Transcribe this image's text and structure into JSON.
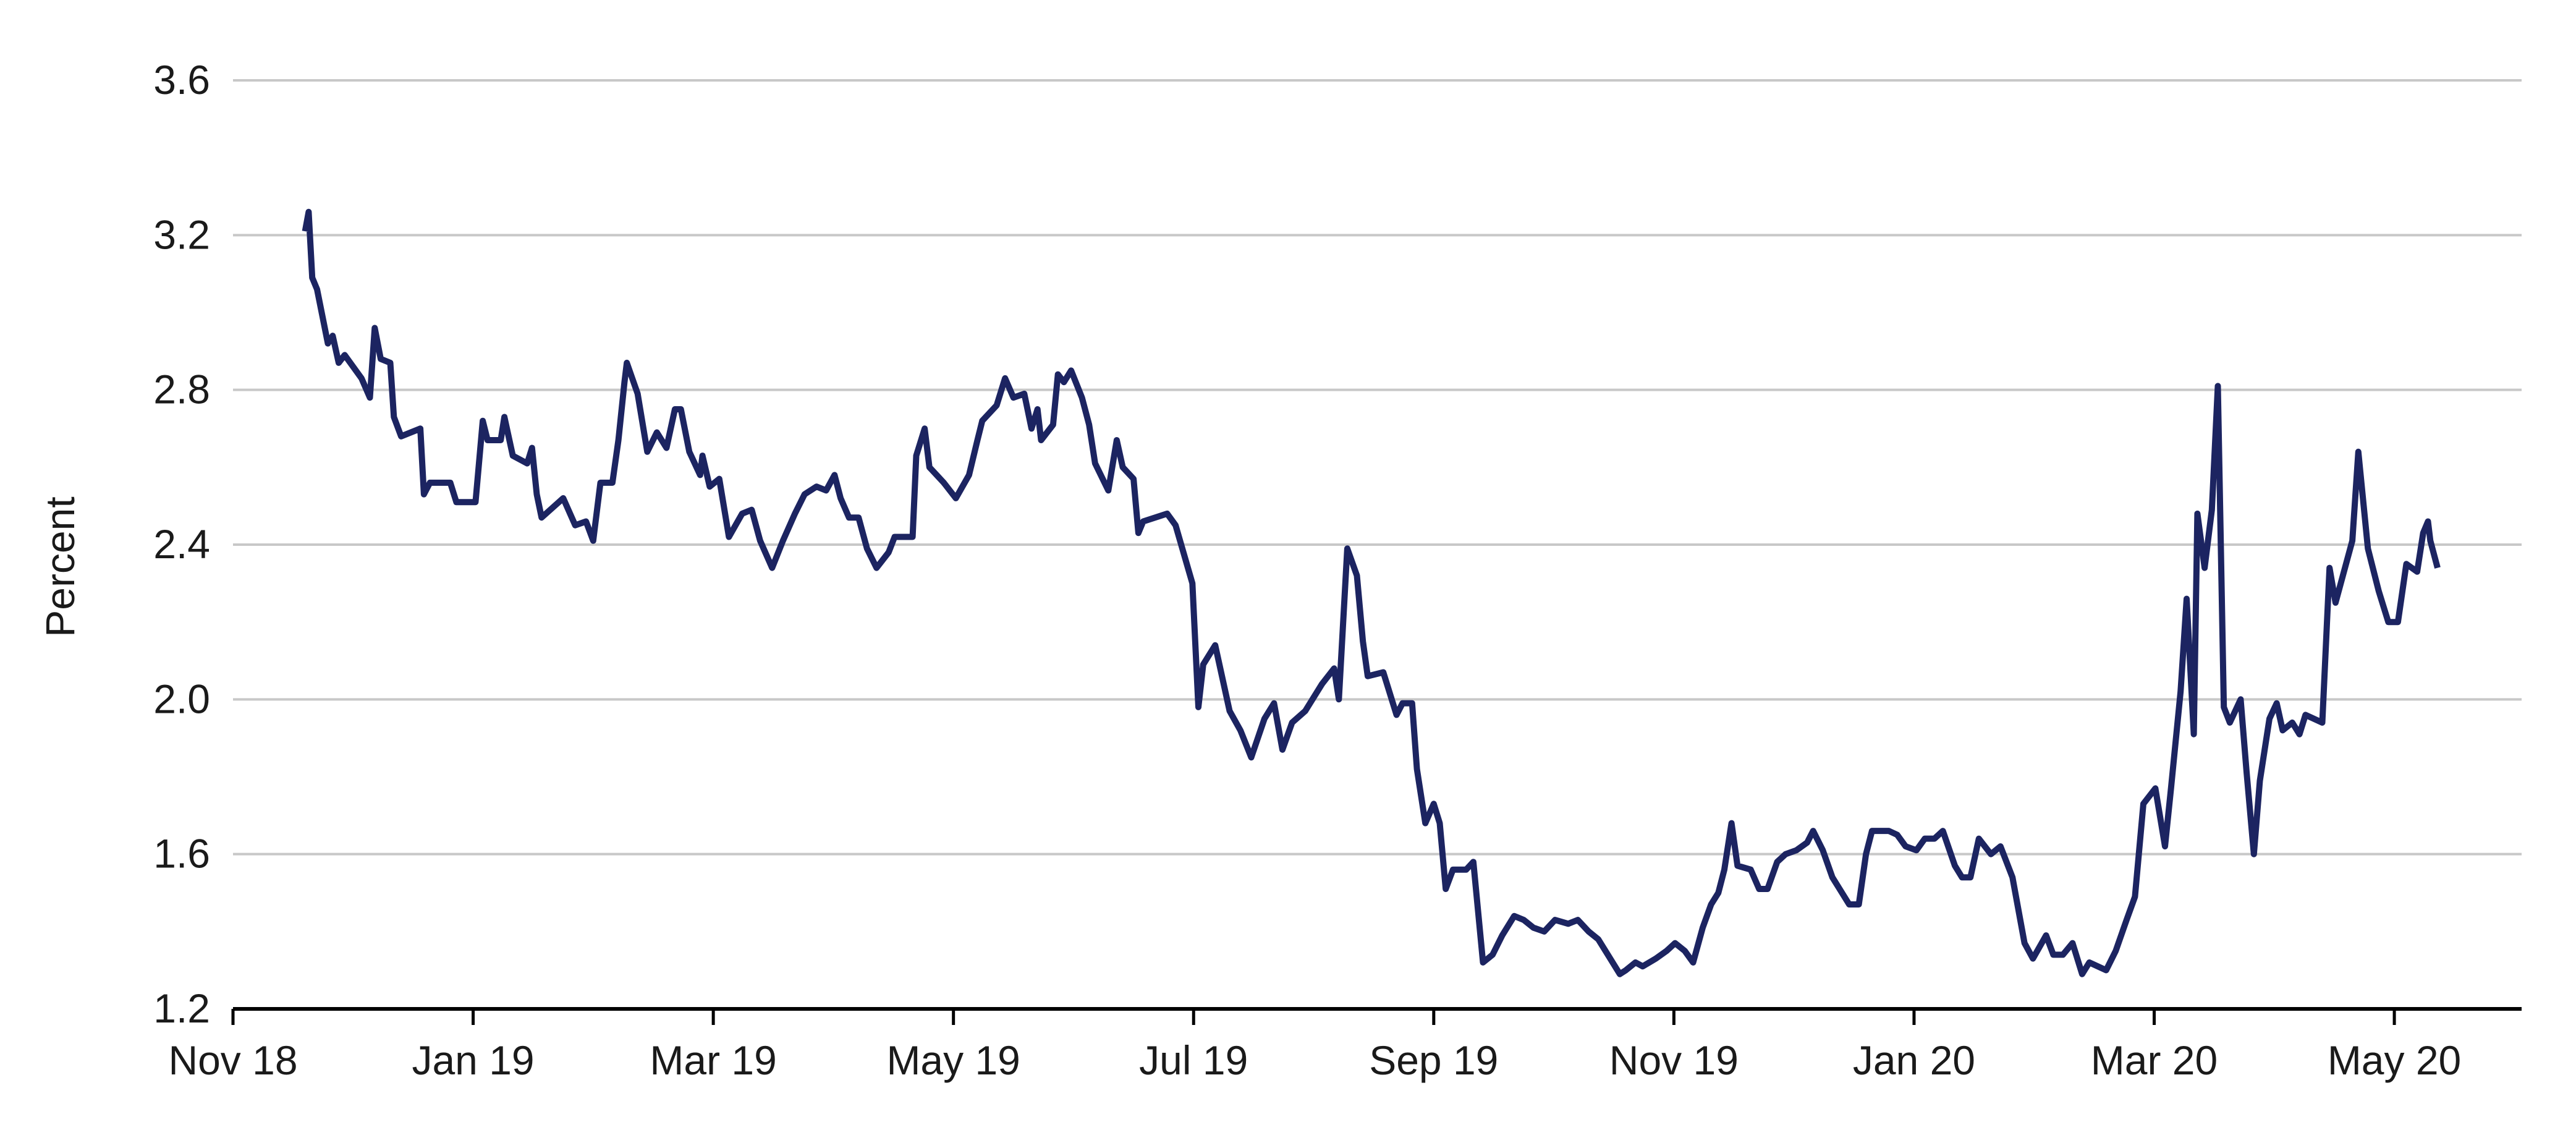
{
  "chart_data": {
    "type": "line",
    "y_label": "Percent",
    "grid": true,
    "xlim": [
      0,
      19.06
    ],
    "xticks": [
      {
        "value": 0,
        "label": "Nov 18"
      },
      {
        "value": 2,
        "label": "Jan 19"
      },
      {
        "value": 4,
        "label": "Mar 19"
      },
      {
        "value": 6,
        "label": "May 19"
      },
      {
        "value": 8,
        "label": "Jul 19"
      },
      {
        "value": 10,
        "label": "Sep 19"
      },
      {
        "value": 12,
        "label": "Nov 19"
      },
      {
        "value": 14,
        "label": "Jan 20"
      },
      {
        "value": 16,
        "label": "Mar 20"
      },
      {
        "value": 18,
        "label": "May 20"
      }
    ],
    "ylim": [
      1.2,
      3.6
    ],
    "yticks": [
      1.2,
      1.6,
      {
        "value": 2,
        "label": "2.0"
      },
      2.4,
      2.8,
      3.2,
      3.6
    ],
    "series": [
      {
        "color": "#1c2461",
        "x": [
          0.6,
          0.63,
          0.66,
          0.7,
          0.79,
          0.83,
          0.88,
          0.93,
          1.07,
          1.14,
          1.18,
          1.23,
          1.31,
          1.34,
          1.4,
          1.56,
          1.59,
          1.64,
          1.81,
          1.86,
          2.02,
          2.08,
          2.12,
          2.23,
          2.26,
          2.33,
          2.45,
          2.49,
          2.53,
          2.57,
          2.75,
          2.85,
          2.94,
          3.0,
          3.06,
          3.16,
          3.21,
          3.26,
          3.28,
          3.37,
          3.45,
          3.53,
          3.61,
          3.68,
          3.73,
          3.8,
          3.89,
          3.91,
          3.97,
          4.05,
          4.13,
          4.24,
          4.32,
          4.39,
          4.49,
          4.58,
          4.68,
          4.76,
          4.86,
          4.94,
          5.01,
          5.06,
          5.13,
          5.21,
          5.28,
          5.36,
          5.46,
          5.51,
          5.66,
          5.69,
          5.76,
          5.8,
          5.92,
          6.02,
          6.13,
          6.2,
          6.24,
          6.36,
          6.43,
          6.5,
          6.59,
          6.65,
          6.7,
          6.73,
          6.83,
          6.87,
          6.92,
          6.98,
          7.07,
          7.13,
          7.18,
          7.29,
          7.36,
          7.41,
          7.5,
          7.54,
          7.58,
          7.78,
          7.85,
          7.99,
          8.04,
          8.08,
          8.18,
          8.3,
          8.39,
          8.48,
          8.59,
          8.67,
          8.74,
          8.82,
          8.93,
          9.07,
          9.17,
          9.21,
          9.28,
          9.36,
          9.41,
          9.45,
          9.58,
          9.69,
          9.74,
          9.82,
          9.86,
          9.93,
          10.0,
          10.05,
          10.1,
          10.16,
          10.27,
          10.33,
          10.41,
          10.49,
          10.57,
          10.67,
          10.75,
          10.83,
          10.92,
          11.01,
          11.12,
          11.2,
          11.29,
          11.37,
          11.45,
          11.55,
          11.6,
          11.68,
          11.74,
          11.85,
          11.94,
          12.01,
          12.09,
          12.16,
          12.24,
          12.31,
          12.37,
          12.42,
          12.48,
          12.53,
          12.64,
          12.71,
          12.78,
          12.86,
          12.93,
          13.02,
          13.11,
          13.16,
          13.24,
          13.32,
          13.38,
          13.46,
          13.54,
          13.6,
          13.65,
          13.79,
          13.86,
          13.93,
          14.02,
          14.09,
          14.17,
          14.24,
          14.34,
          14.4,
          14.47,
          14.54,
          14.64,
          14.72,
          14.82,
          14.92,
          14.99,
          15.1,
          15.16,
          15.24,
          15.32,
          15.4,
          15.46,
          15.6,
          15.68,
          15.77,
          15.84,
          15.91,
          16.01,
          16.09,
          16.14,
          16.22,
          16.27,
          16.33,
          16.36,
          16.42,
          16.48,
          16.53,
          16.58,
          16.63,
          16.72,
          16.77,
          16.83,
          16.88,
          16.96,
          17.02,
          17.07,
          17.15,
          17.21,
          17.26,
          17.4,
          17.46,
          17.51,
          17.65,
          17.7,
          17.78,
          17.87,
          17.95,
          18.03,
          18.1,
          18.19,
          18.24,
          18.28,
          18.3,
          18.36
        ],
        "values": [
          3.21,
          3.26,
          3.09,
          3.06,
          2.92,
          2.94,
          2.87,
          2.89,
          2.83,
          2.78,
          2.96,
          2.88,
          2.87,
          2.73,
          2.68,
          2.7,
          2.53,
          2.56,
          2.56,
          2.51,
          2.51,
          2.72,
          2.67,
          2.67,
          2.73,
          2.63,
          2.61,
          2.65,
          2.53,
          2.47,
          2.52,
          2.45,
          2.46,
          2.41,
          2.56,
          2.56,
          2.67,
          2.82,
          2.87,
          2.79,
          2.64,
          2.69,
          2.65,
          2.75,
          2.75,
          2.64,
          2.58,
          2.63,
          2.55,
          2.57,
          2.42,
          2.48,
          2.49,
          2.41,
          2.34,
          2.41,
          2.48,
          2.53,
          2.55,
          2.54,
          2.58,
          2.52,
          2.47,
          2.47,
          2.39,
          2.34,
          2.38,
          2.42,
          2.42,
          2.63,
          2.7,
          2.6,
          2.56,
          2.52,
          2.58,
          2.67,
          2.72,
          2.76,
          2.83,
          2.78,
          2.79,
          2.7,
          2.75,
          2.67,
          2.71,
          2.84,
          2.82,
          2.85,
          2.78,
          2.71,
          2.61,
          2.54,
          2.67,
          2.6,
          2.57,
          2.43,
          2.46,
          2.48,
          2.45,
          2.3,
          1.98,
          2.09,
          2.14,
          1.97,
          1.92,
          1.85,
          1.95,
          1.99,
          1.87,
          1.94,
          1.97,
          2.04,
          2.08,
          2.0,
          2.39,
          2.32,
          2.15,
          2.06,
          2.07,
          1.96,
          1.99,
          1.99,
          1.82,
          1.68,
          1.73,
          1.68,
          1.51,
          1.56,
          1.56,
          1.58,
          1.32,
          1.34,
          1.39,
          1.44,
          1.43,
          1.41,
          1.4,
          1.43,
          1.42,
          1.43,
          1.4,
          1.38,
          1.34,
          1.29,
          1.3,
          1.32,
          1.31,
          1.33,
          1.35,
          1.37,
          1.35,
          1.32,
          1.41,
          1.47,
          1.5,
          1.56,
          1.68,
          1.57,
          1.56,
          1.51,
          1.51,
          1.58,
          1.6,
          1.61,
          1.63,
          1.66,
          1.61,
          1.54,
          1.51,
          1.47,
          1.47,
          1.6,
          1.66,
          1.66,
          1.65,
          1.62,
          1.61,
          1.64,
          1.64,
          1.66,
          1.57,
          1.54,
          1.54,
          1.64,
          1.6,
          1.62,
          1.54,
          1.37,
          1.33,
          1.39,
          1.34,
          1.34,
          1.37,
          1.29,
          1.32,
          1.3,
          1.35,
          1.43,
          1.49,
          1.73,
          1.77,
          1.62,
          1.77,
          2.02,
          2.26,
          1.91,
          2.48,
          2.34,
          2.49,
          2.81,
          1.98,
          1.94,
          2.0,
          1.81,
          1.6,
          1.79,
          1.95,
          1.99,
          1.92,
          1.94,
          1.91,
          1.96,
          1.94,
          2.34,
          2.25,
          2.41,
          2.64,
          2.39,
          2.28,
          2.2,
          2.2,
          2.35,
          2.33,
          2.43,
          2.46,
          2.41,
          2.34
        ]
      }
    ]
  }
}
